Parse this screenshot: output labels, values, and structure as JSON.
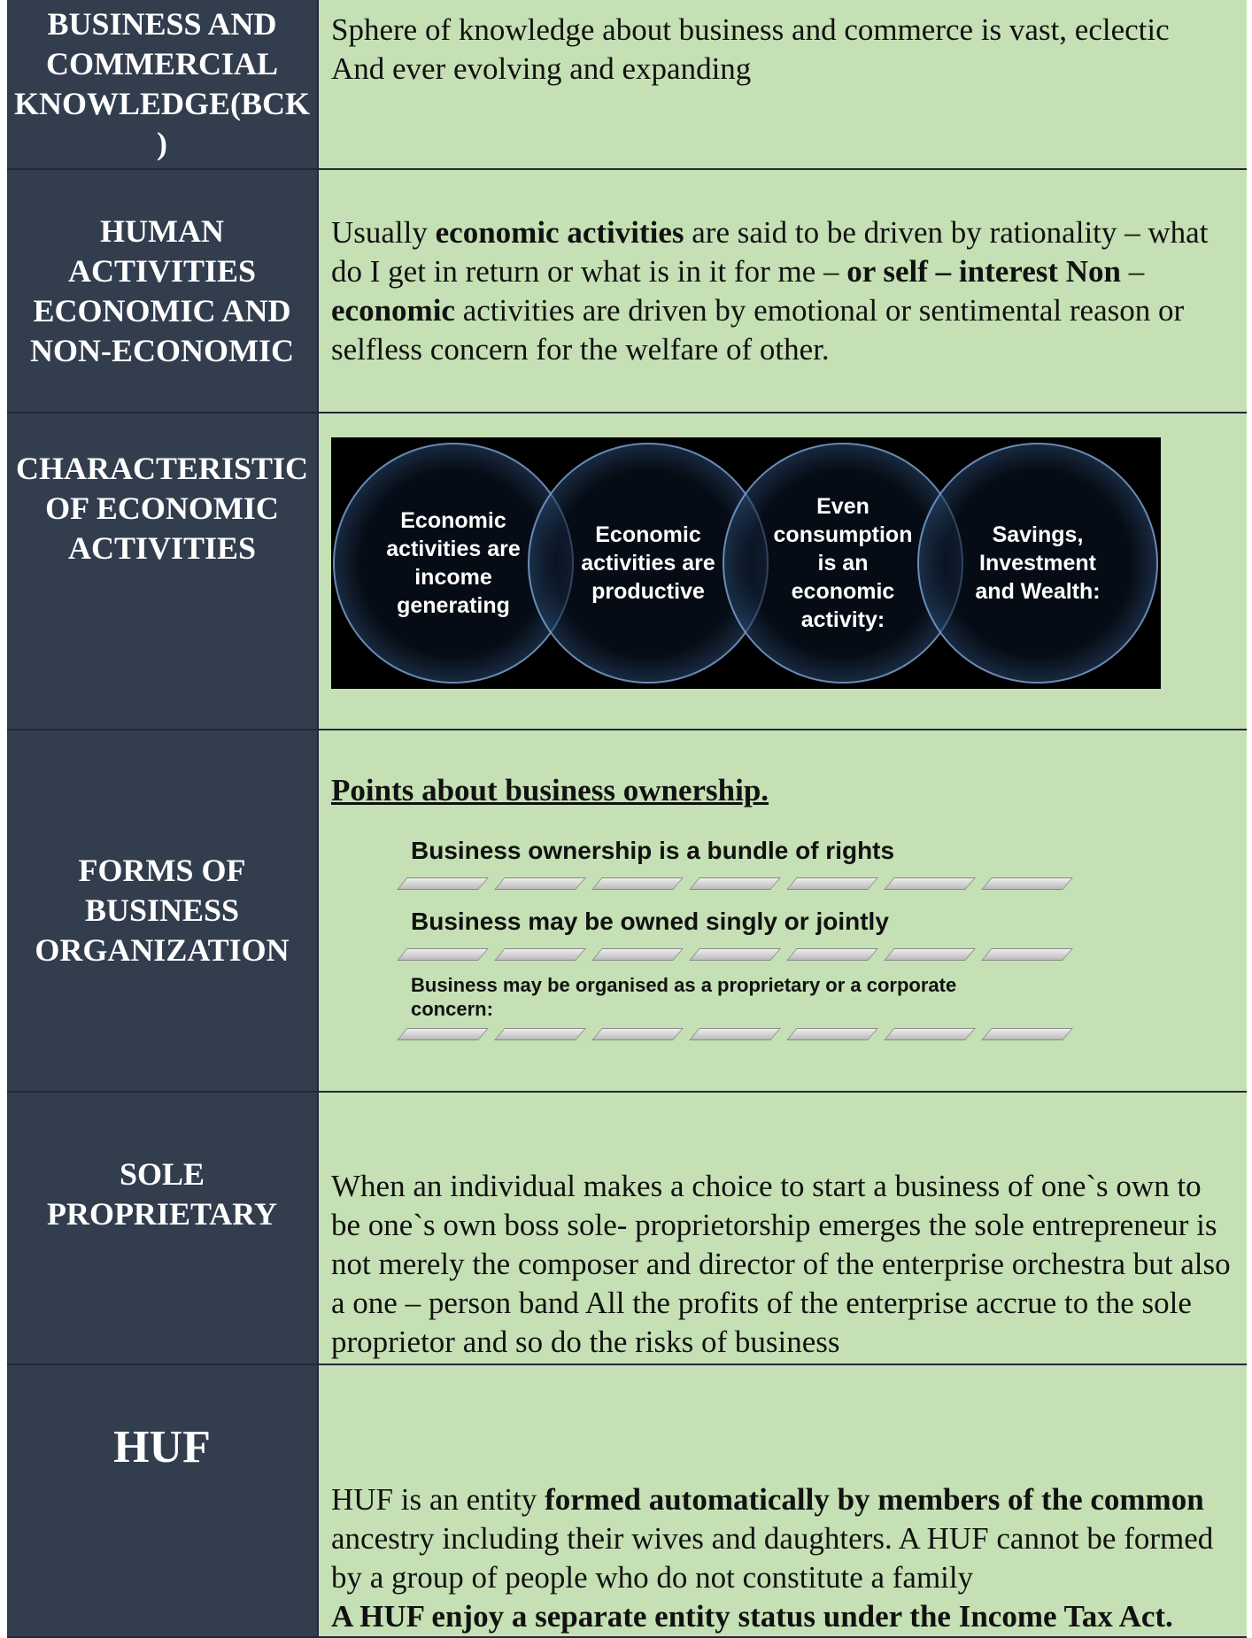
{
  "rows": [
    {
      "header": "BUSINESS AND COMMERCIAL KNOWLEDGE(BCK)",
      "paragraphs": [
        [
          {
            "text": "Sphere of knowledge about business and commerce is vast, eclectic",
            "bold": false
          }
        ],
        [
          {
            "text": "And ever evolving and expanding",
            "bold": false
          }
        ]
      ]
    },
    {
      "header": "HUMAN ACTIVITIES ECONOMIC AND NON-ECONOMIC",
      "paragraphs": [
        [
          {
            "text": "Usually ",
            "bold": false
          },
          {
            "text": "economic activities",
            "bold": true
          },
          {
            "text": " are said to be driven by rationality – what do I get in return or what is in it for me – ",
            "bold": false
          },
          {
            "text": "or self – interest Non",
            "bold": true
          },
          {
            "text": " – ",
            "bold": false
          },
          {
            "text": "economic",
            "bold": true
          },
          {
            "text": " activities are driven by emotional or sentimental reason or selfless concern for the welfare of other.",
            "bold": false
          }
        ]
      ]
    },
    {
      "header": "CHARACTERISTIC OF ECONOMIC ACTIVITIES",
      "circles": [
        "Economic activities are income generating",
        "Economic activities are productive",
        "Even consumption is an economic activity:",
        "Savings, Investment and Wealth:"
      ]
    },
    {
      "header": "FORMS OF BUSINESS ORGANIZATION",
      "heading": "Points about business ownership.",
      "points": [
        "Business ownership is a bundle of rights",
        "Business may be owned singly or jointly",
        "Business may be organised as a proprietary or a corporate concern:"
      ]
    },
    {
      "header": "SOLE PROPRIETARY",
      "paragraphs": [
        [
          {
            "text": "When an individual makes a choice to start a business of one`s own to be one`s own boss sole- proprietorship emerges the sole entrepreneur is not merely the composer and director of the enterprise orchestra but also a one – person band All the profits of the enterprise accrue to the sole proprietor and so do the risks of business",
            "bold": false
          }
        ]
      ]
    },
    {
      "header": "HUF",
      "paragraphs": [
        [
          {
            "text": "HUF is an entity ",
            "bold": false
          },
          {
            "text": "formed automatically by members of the common",
            "bold": true
          },
          {
            "text": " ancestry including their wives and daughters. A HUF cannot be formed by a group of people who do not constitute a family",
            "bold": false
          }
        ],
        [
          {
            "text": "A HUF enjoy a separate entity status under the Income Tax Act.",
            "bold": true
          }
        ]
      ]
    }
  ]
}
